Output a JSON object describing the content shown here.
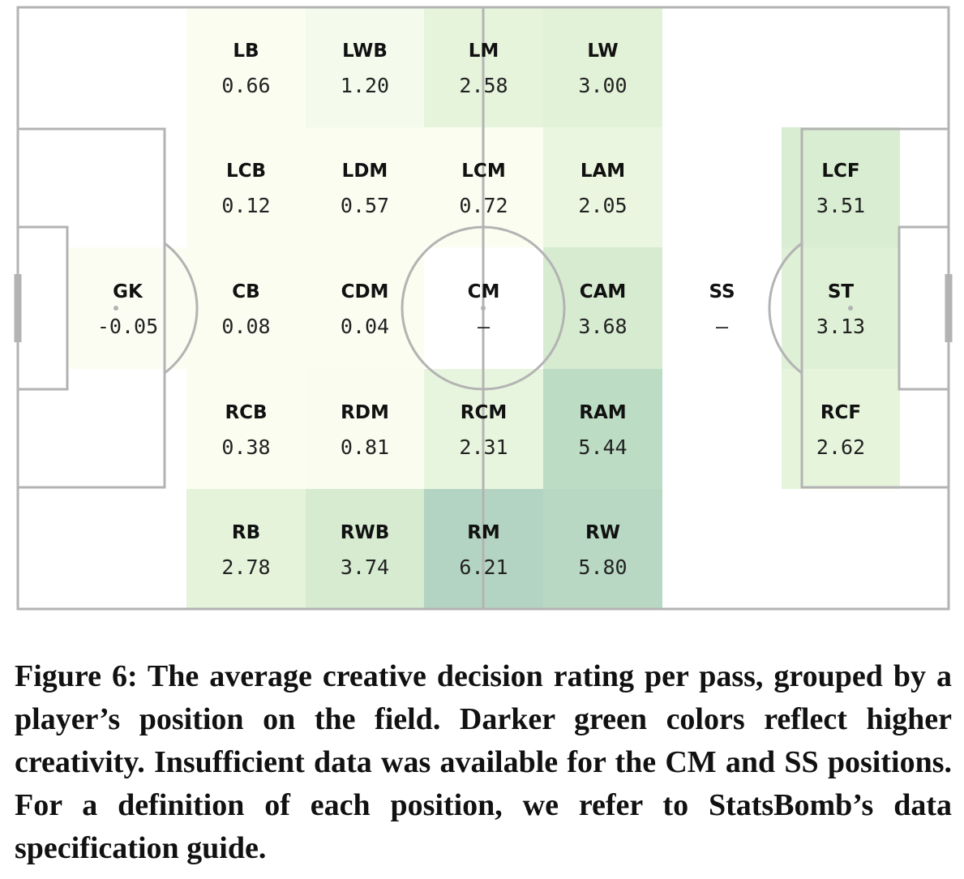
{
  "chart_data": {
    "type": "heatmap",
    "title": "",
    "xlabel": "",
    "ylabel": "",
    "missing_symbol": "–",
    "cells": [
      {
        "position": "LB",
        "value": 0.66,
        "display": "0.66",
        "color": "#fafdf0"
      },
      {
        "position": "LWB",
        "value": 1.2,
        "display": "1.20",
        "color": "#f5fbec"
      },
      {
        "position": "LM",
        "value": 2.58,
        "display": "2.58",
        "color": "#e6f4dc"
      },
      {
        "position": "LW",
        "value": 3.0,
        "display": "3.00",
        "color": "#e2f2d8"
      },
      {
        "position": "LCB",
        "value": 0.12,
        "display": "0.12",
        "color": "#fbfdf1"
      },
      {
        "position": "LDM",
        "value": 0.57,
        "display": "0.57",
        "color": "#fafdf0"
      },
      {
        "position": "LCM",
        "value": 0.72,
        "display": "0.72",
        "color": "#fafdf0"
      },
      {
        "position": "LAM",
        "value": 2.05,
        "display": "2.05",
        "color": "#ebf6e0"
      },
      {
        "position": "GK",
        "value": -0.05,
        "display": "-0.05",
        "color": "#fcfdf2"
      },
      {
        "position": "CB",
        "value": 0.08,
        "display": "0.08",
        "color": "#fbfdf1"
      },
      {
        "position": "CDM",
        "value": 0.04,
        "display": "0.04",
        "color": "#fbfdf1"
      },
      {
        "position": "CM",
        "value": null,
        "display": "–",
        "color": "#ffffff"
      },
      {
        "position": "CAM",
        "value": 3.68,
        "display": "3.68",
        "color": "#d6ebd0"
      },
      {
        "position": "SS",
        "value": null,
        "display": "–",
        "color": "#ffffff"
      },
      {
        "position": "RCB",
        "value": 0.38,
        "display": "0.38",
        "color": "#fbfdf1"
      },
      {
        "position": "RDM",
        "value": 0.81,
        "display": "0.81",
        "color": "#f9fcef"
      },
      {
        "position": "RCM",
        "value": 2.31,
        "display": "2.31",
        "color": "#e8f5de"
      },
      {
        "position": "RAM",
        "value": 5.44,
        "display": "5.44",
        "color": "#bcdcc4"
      },
      {
        "position": "RB",
        "value": 2.78,
        "display": "2.78",
        "color": "#e4f3da"
      },
      {
        "position": "RWB",
        "value": 3.74,
        "display": "3.74",
        "color": "#d6ebd0"
      },
      {
        "position": "RM",
        "value": 6.21,
        "display": "6.21",
        "color": "#b3d4c2"
      },
      {
        "position": "RW",
        "value": 5.8,
        "display": "5.80",
        "color": "#b8d8c3"
      },
      {
        "position": "LCF",
        "value": 3.51,
        "display": "3.51",
        "color": "#d8edd2"
      },
      {
        "position": "ST",
        "value": 3.13,
        "display": "3.13",
        "color": "#def0d6"
      },
      {
        "position": "RCF",
        "value": 2.62,
        "display": "2.62",
        "color": "#e6f4dc"
      }
    ]
  },
  "caption": "Figure 6: The average creative decision rating per pass, grouped by a player’s position on the field. Darker green colors reflect higher creativity. Insufficient data was available for the CM and SS positions. For a definition of each position, we refer to StatsBomb’s data specification guide.",
  "colors": {
    "line": "#b3b3b3"
  }
}
